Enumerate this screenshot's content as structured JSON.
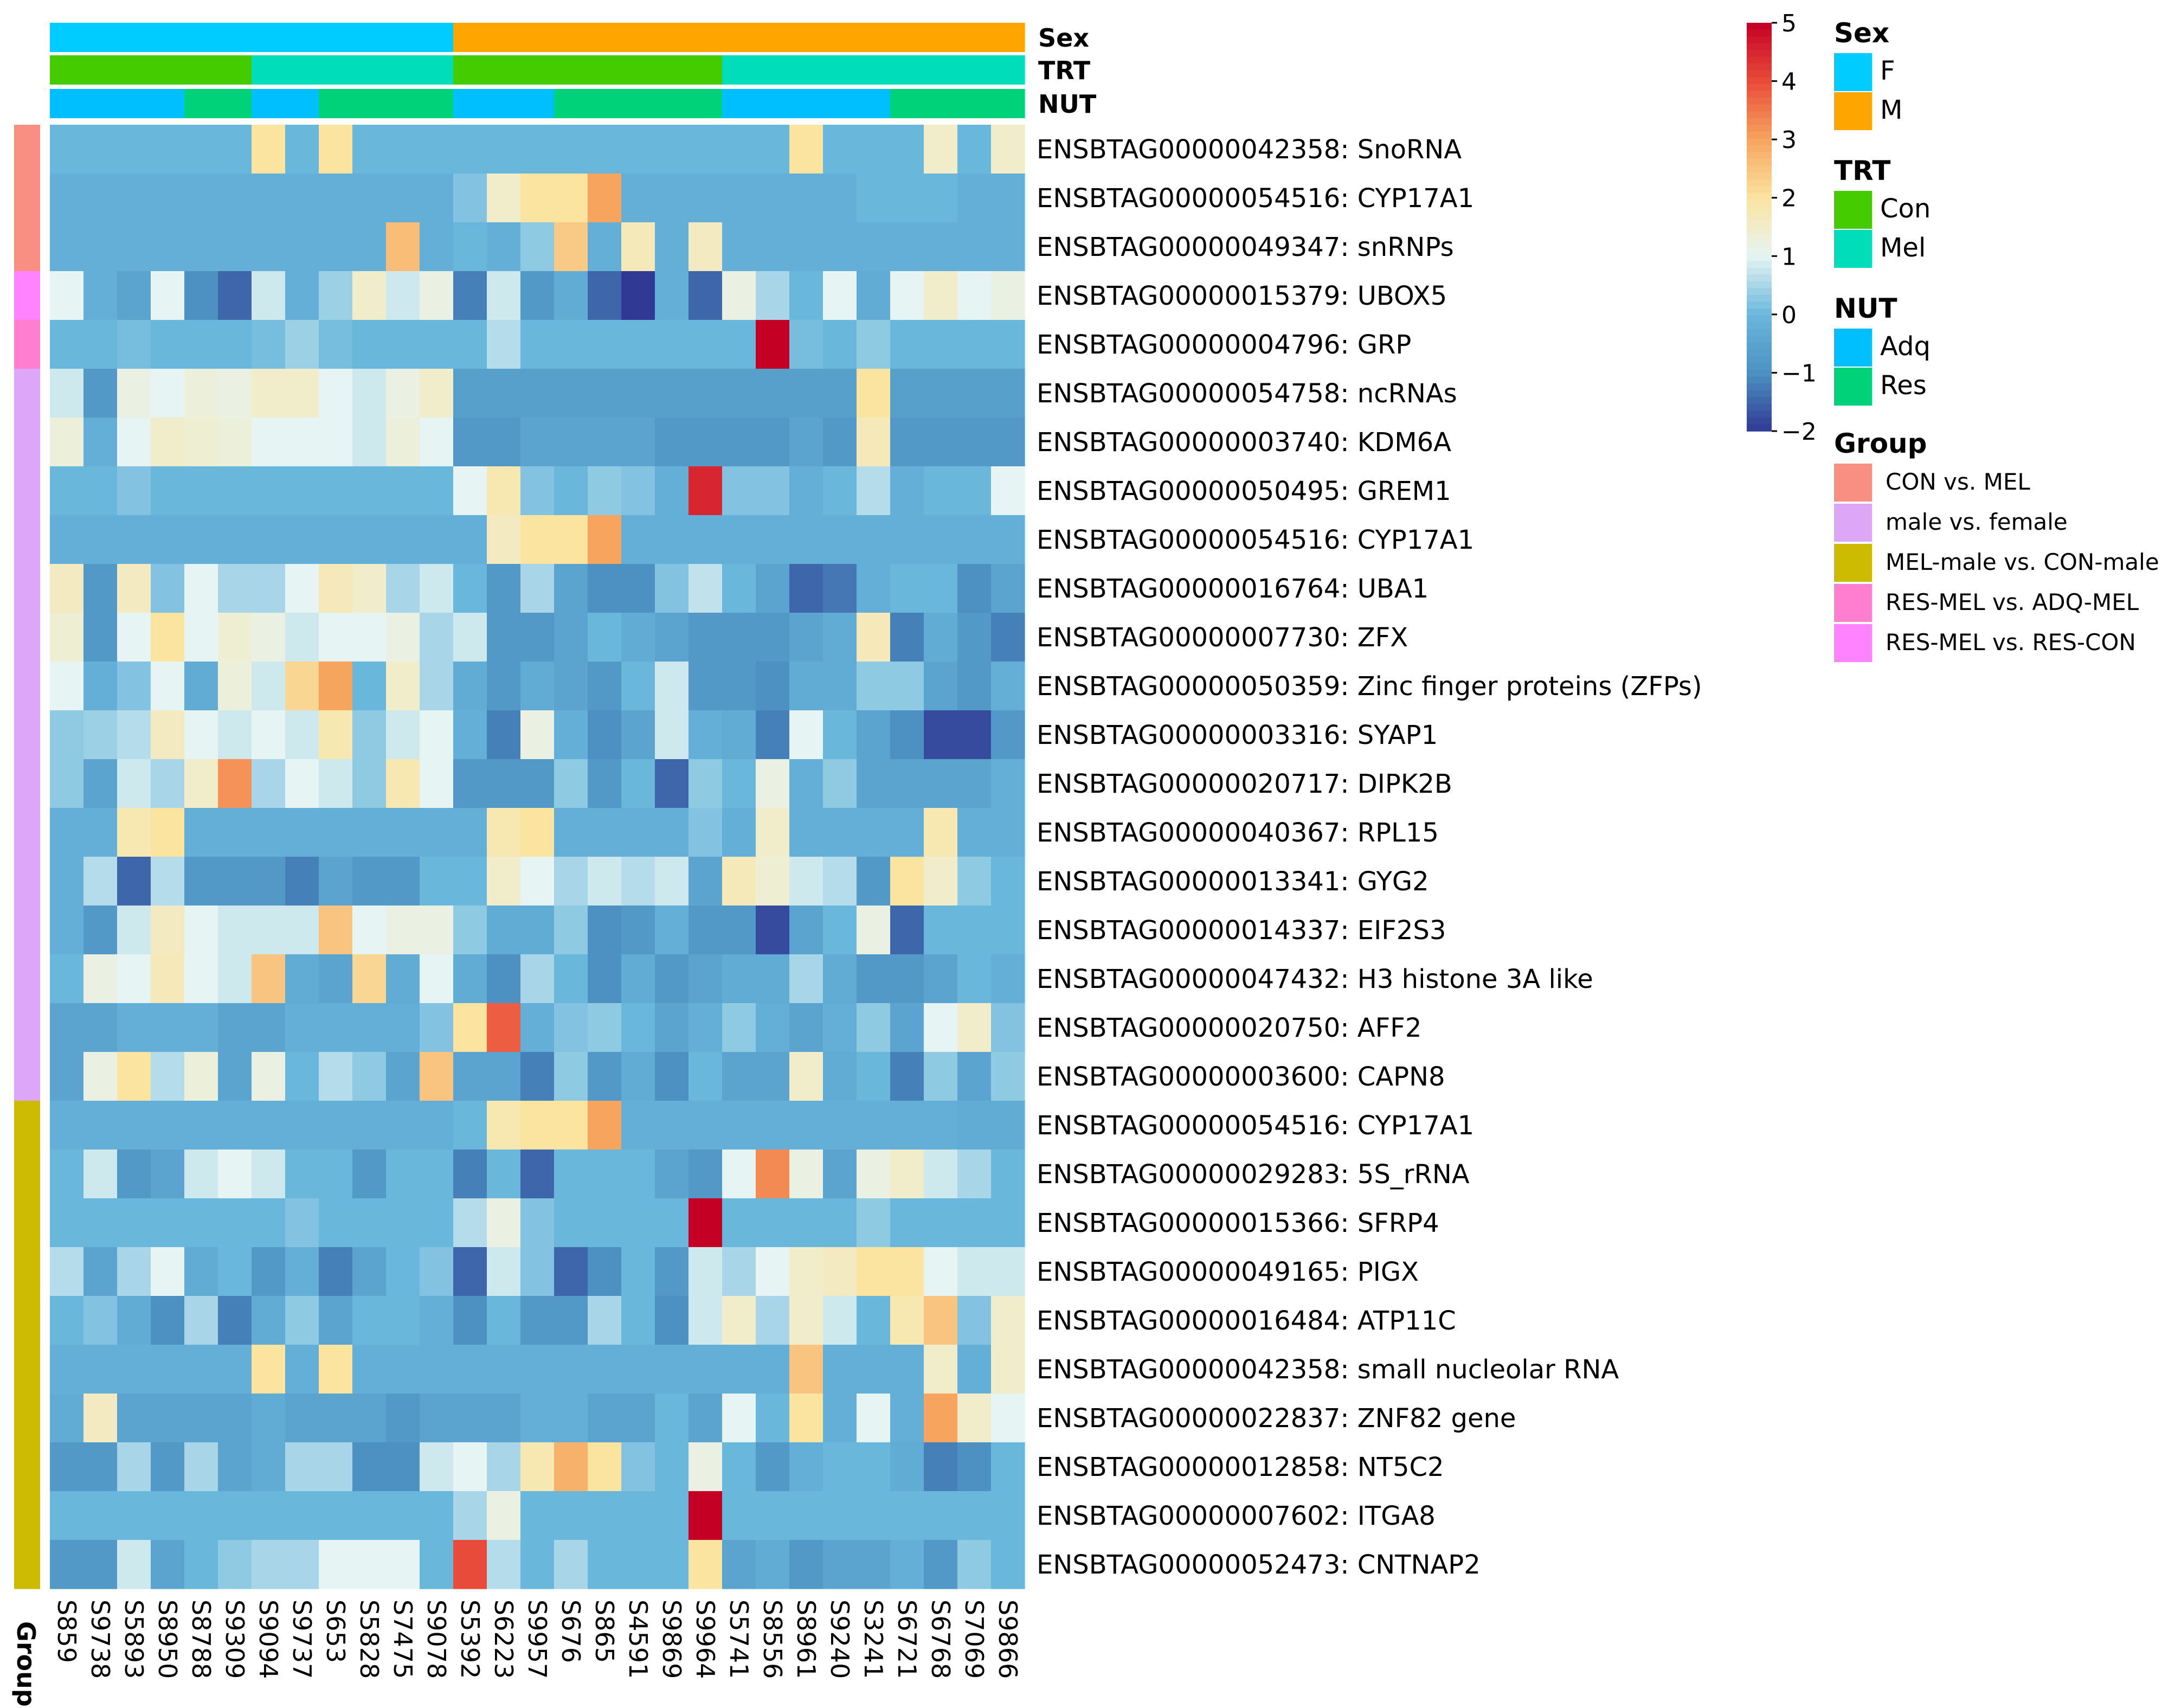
{
  "chart_data": {
    "type": "heatmap",
    "samples": [
      "S859",
      "S9738",
      "S5893",
      "S8950",
      "S8788",
      "S9309",
      "S9094",
      "S9737",
      "S653",
      "S5828",
      "S7475",
      "S9078",
      "S5392",
      "S6223",
      "S9957",
      "S676",
      "S865",
      "S4591",
      "S9869",
      "S9964",
      "S5741",
      "S8556",
      "S8961",
      "S9240",
      "S3241",
      "S6721",
      "S6768",
      "S7069",
      "S9866"
    ],
    "rows": [
      {
        "label": "ENSBTAG00000042358: SnoRNA",
        "group": "CON vs. MEL"
      },
      {
        "label": "ENSBTAG00000054516: CYP17A1",
        "group": "CON vs. MEL"
      },
      {
        "label": "ENSBTAG00000049347: snRNPs",
        "group": "CON vs. MEL"
      },
      {
        "label": "ENSBTAG00000015379: UBOX5",
        "group": "RES-MEL vs. RES-CON"
      },
      {
        "label": "ENSBTAG00000004796: GRP",
        "group": "RES-MEL vs. ADQ-MEL"
      },
      {
        "label": "ENSBTAG00000054758: ncRNAs",
        "group": "male vs. female"
      },
      {
        "label": "ENSBTAG00000003740: KDM6A",
        "group": "male vs. female"
      },
      {
        "label": "ENSBTAG00000050495: GREM1",
        "group": "male vs. female"
      },
      {
        "label": "ENSBTAG00000054516: CYP17A1",
        "group": "male vs. female"
      },
      {
        "label": "ENSBTAG00000016764: UBA1",
        "group": "male vs. female"
      },
      {
        "label": "ENSBTAG00000007730: ZFX",
        "group": "male vs. female"
      },
      {
        "label": "ENSBTAG00000050359: Zinc finger proteins (ZFPs)",
        "group": "male vs. female"
      },
      {
        "label": "ENSBTAG00000003316: SYAP1",
        "group": "male vs. female"
      },
      {
        "label": "ENSBTAG00000020717: DIPK2B",
        "group": "male vs. female"
      },
      {
        "label": "ENSBTAG00000040367: RPL15",
        "group": "male vs. female"
      },
      {
        "label": "ENSBTAG00000013341: GYG2",
        "group": "male vs. female"
      },
      {
        "label": "ENSBTAG00000014337: EIF2S3",
        "group": "male vs. female"
      },
      {
        "label": "ENSBTAG00000047432:  H3 histone 3A like",
        "group": "male vs. female"
      },
      {
        "label": "ENSBTAG00000020750: AFF2",
        "group": "male vs. female"
      },
      {
        "label": "ENSBTAG00000003600: CAPN8",
        "group": "male vs. female"
      },
      {
        "label": "ENSBTAG00000054516: CYP17A1",
        "group": "MEL-male vs. CON-male"
      },
      {
        "label": "ENSBTAG00000029283: 5S_rRNA",
        "group": "MEL-male vs. CON-male"
      },
      {
        "label": "ENSBTAG00000015366: SFRP4",
        "group": "MEL-male vs. CON-male"
      },
      {
        "label": "ENSBTAG00000049165: PIGX",
        "group": "MEL-male vs. CON-male"
      },
      {
        "label": "ENSBTAG00000016484: ATP11C",
        "group": "MEL-male vs. CON-male"
      },
      {
        "label": "ENSBTAG00000042358: small nucleolar RNA",
        "group": "MEL-male vs. CON-male"
      },
      {
        "label": "ENSBTAG00000022837: ZNF82 gene",
        "group": "MEL-male vs. CON-male"
      },
      {
        "label": "ENSBTAG00000012858: NT5C2",
        "group": "MEL-male vs. CON-male"
      },
      {
        "label": "ENSBTAG00000007602: ITGA8",
        "group": "MEL-male vs. CON-male"
      },
      {
        "label": "ENSBTAG00000052473: CNTNAP2",
        "group": "MEL-male vs. CON-male"
      }
    ],
    "values": [
      [
        0,
        0,
        0,
        0,
        0,
        0,
        2,
        0,
        2,
        0,
        0,
        0,
        0,
        0,
        0,
        0,
        0,
        0,
        0,
        0,
        0,
        0,
        2,
        0,
        0,
        0,
        1.5,
        0,
        1.5
      ],
      [
        -0.2,
        -0.2,
        -0.2,
        -0.2,
        -0.2,
        -0.2,
        -0.2,
        -0.2,
        -0.2,
        -0.2,
        -0.2,
        -0.2,
        0.2,
        1.5,
        2,
        2,
        3,
        -0.2,
        -0.2,
        -0.2,
        -0.2,
        -0.2,
        -0.2,
        -0.2,
        0,
        0,
        0,
        -0.2,
        -0.2
      ],
      [
        -0.2,
        -0.2,
        -0.2,
        -0.2,
        -0.2,
        -0.2,
        -0.2,
        -0.2,
        -0.2,
        -0.2,
        2.6,
        -0.2,
        0,
        -0.2,
        0.3,
        2.4,
        -0.2,
        1.7,
        -0.2,
        1.6,
        -0.2,
        -0.2,
        -0.2,
        -0.2,
        -0.2,
        -0.2,
        -0.2,
        -0.2,
        -0.2
      ],
      [
        1,
        -0.2,
        -0.5,
        1,
        -1,
        -1.5,
        0.8,
        -0.2,
        0.4,
        1.5,
        0.8,
        1.2,
        -1.2,
        0.8,
        -0.8,
        -0.3,
        -1.5,
        -2,
        -0.2,
        -1.5,
        1.2,
        0.5,
        0,
        1,
        -0.3,
        1,
        1.5,
        1,
        1.2
      ],
      [
        0,
        0,
        0.1,
        0,
        0,
        0,
        0.1,
        0.4,
        0.1,
        0,
        0,
        0,
        0,
        0.6,
        0,
        0,
        0,
        0,
        0,
        0,
        0,
        5,
        0.1,
        0,
        0.3,
        0,
        0,
        0,
        0
      ],
      [
        0.8,
        -0.8,
        1.2,
        1,
        1.3,
        1.2,
        1.5,
        1.5,
        1,
        0.8,
        1.2,
        1.5,
        -0.6,
        -0.6,
        -0.6,
        -0.6,
        -0.6,
        -0.6,
        -0.6,
        -0.6,
        -0.6,
        -0.6,
        -0.6,
        -0.6,
        2,
        -0.6,
        -0.6,
        -0.6,
        -0.6
      ],
      [
        1.3,
        -0.2,
        1,
        1.5,
        1.4,
        1.3,
        1,
        1,
        1,
        0.8,
        1.3,
        1,
        -0.8,
        -0.8,
        -0.5,
        -0.5,
        -0.5,
        -0.5,
        -0.8,
        -0.8,
        -0.8,
        -0.8,
        -0.5,
        -0.8,
        1.7,
        -0.8,
        -0.8,
        -0.8,
        -0.8
      ],
      [
        0,
        0,
        0.2,
        0,
        0,
        0,
        0,
        0,
        0,
        0,
        0,
        0,
        1,
        1.8,
        0.2,
        0,
        0.3,
        0.2,
        -0.2,
        4.5,
        0.2,
        0.2,
        -0.2,
        0,
        0.6,
        -0.2,
        0,
        0,
        1
      ],
      [
        -0.2,
        -0.2,
        -0.2,
        -0.2,
        -0.2,
        -0.2,
        -0.2,
        -0.2,
        -0.2,
        -0.2,
        -0.2,
        -0.2,
        -0.2,
        1.6,
        2,
        2,
        3,
        -0.2,
        -0.2,
        -0.2,
        -0.2,
        -0.2,
        -0.2,
        -0.2,
        -0.2,
        -0.2,
        -0.2,
        -0.2,
        -0.2
      ],
      [
        1.6,
        -0.8,
        1.6,
        0.2,
        1,
        0.5,
        0.5,
        1,
        1.7,
        1.5,
        0.5,
        0.8,
        0,
        -0.8,
        0.5,
        -0.5,
        -1,
        -1,
        0.2,
        0.7,
        0,
        -0.5,
        -1.5,
        -1.3,
        -0.2,
        0,
        0,
        -1,
        -0.5
      ],
      [
        1.4,
        -0.8,
        1,
        2,
        1,
        1.4,
        1.2,
        0.8,
        1,
        1,
        1.2,
        0.5,
        0.8,
        -0.8,
        -0.8,
        -0.5,
        0,
        -0.3,
        -0.5,
        -0.8,
        -0.8,
        -0.8,
        -0.5,
        -0.3,
        1.7,
        -1.2,
        -0.3,
        -0.8,
        -1.2
      ],
      [
        1,
        -0.2,
        0.2,
        1,
        -0.3,
        1.3,
        0.8,
        2.2,
        3,
        0,
        1.5,
        0.5,
        -0.3,
        -0.8,
        -0.3,
        -0.5,
        -0.8,
        0,
        0.8,
        -0.8,
        -0.8,
        -1,
        -0.3,
        -0.3,
        0.3,
        0.3,
        -0.5,
        -0.8,
        -0.2
      ],
      [
        0.3,
        0.4,
        0.6,
        1.6,
        1,
        0.8,
        1,
        0.8,
        1.8,
        0.3,
        0.8,
        1,
        -0.2,
        -1.2,
        1.2,
        -0.2,
        -1,
        -0.5,
        0.8,
        -0.2,
        -0.3,
        -1.2,
        1,
        0,
        -0.5,
        -1,
        -1.8,
        -1.8,
        -0.8
      ],
      [
        0.3,
        -0.5,
        0.8,
        0.5,
        1.5,
        3.2,
        0.5,
        1,
        0.8,
        0.3,
        1.8,
        1,
        -0.8,
        -0.8,
        -0.8,
        0.3,
        -0.8,
        0,
        -1.5,
        0.3,
        0,
        1.2,
        -0.2,
        0.3,
        -0.5,
        -0.5,
        -0.5,
        -0.5,
        -0.2
      ],
      [
        -0.2,
        -0.2,
        1.8,
        2,
        -0.2,
        -0.2,
        -0.2,
        -0.2,
        -0.2,
        -0.2,
        -0.2,
        -0.2,
        -0.2,
        1.8,
        2,
        -0.2,
        -0.2,
        -0.2,
        -0.2,
        0.2,
        -0.2,
        1.5,
        -0.2,
        -0.2,
        -0.2,
        -0.2,
        1.8,
        -0.2,
        -0.2
      ],
      [
        -0.2,
        0.6,
        -1.5,
        0.6,
        -0.8,
        -0.8,
        -0.8,
        -1.2,
        -0.5,
        -0.8,
        -0.8,
        0,
        0,
        1.5,
        1,
        0.5,
        0.8,
        0.6,
        0.8,
        -0.5,
        1.7,
        1.4,
        0.8,
        0.6,
        -0.8,
        2,
        1.5,
        0.3,
        0
      ],
      [
        -0.2,
        -0.8,
        0.8,
        1.6,
        1,
        0.8,
        0.8,
        0.8,
        2.5,
        1,
        1.2,
        1.2,
        0.3,
        -0.3,
        -0.3,
        0.3,
        -1,
        -0.8,
        -0.2,
        -0.8,
        -0.8,
        -1.8,
        -0.5,
        0,
        1.2,
        -1.5,
        0,
        0,
        0
      ],
      [
        0,
        1.2,
        1,
        1.7,
        1,
        0.8,
        2.5,
        -0.3,
        -0.5,
        2.2,
        -0.3,
        1,
        -0.3,
        -1,
        0.5,
        0,
        -1,
        -0.3,
        -0.8,
        -0.5,
        -0.3,
        -0.3,
        0.5,
        -0.3,
        -0.8,
        -0.8,
        -0.5,
        0,
        -0.2
      ],
      [
        -0.5,
        -0.5,
        -0.2,
        -0.2,
        -0.2,
        -0.5,
        -0.5,
        -0.2,
        -0.2,
        -0.2,
        -0.2,
        0.2,
        2,
        3.8,
        -0.2,
        0.2,
        0.3,
        0,
        -0.5,
        -0.2,
        0.3,
        -0.2,
        -0.5,
        -0.2,
        0.3,
        -0.5,
        1,
        1.5,
        0.2
      ],
      [
        -0.5,
        1.2,
        2,
        0.6,
        1.3,
        -0.5,
        1.2,
        0,
        0.6,
        0.3,
        -0.5,
        2.5,
        -0.5,
        -0.5,
        -1.2,
        0.3,
        -0.8,
        -0.3,
        -1,
        0,
        -0.5,
        -0.5,
        1.5,
        -0.3,
        0,
        -1.2,
        0.3,
        -0.5,
        0.3
      ],
      [
        -0.2,
        -0.2,
        -0.2,
        -0.2,
        -0.2,
        -0.2,
        -0.2,
        -0.2,
        -0.2,
        -0.2,
        -0.2,
        -0.2,
        0,
        1.8,
        2,
        2,
        3,
        -0.2,
        -0.2,
        -0.2,
        -0.2,
        -0.2,
        -0.2,
        -0.2,
        -0.2,
        -0.2,
        -0.2,
        -0.3,
        -0.3
      ],
      [
        0,
        0.8,
        -0.8,
        -0.5,
        0.8,
        1,
        0.8,
        0,
        0,
        -0.8,
        0,
        0,
        -1.2,
        0,
        -1.5,
        0,
        0,
        0,
        -0.5,
        -0.8,
        1,
        3.3,
        1.2,
        -0.5,
        1.2,
        1.5,
        0.8,
        0.5,
        0
      ],
      [
        0,
        0,
        0,
        0,
        0,
        0,
        0,
        0.2,
        0,
        0,
        0,
        0,
        0.6,
        1.2,
        0.2,
        0,
        0,
        0,
        0,
        5,
        0,
        0,
        0,
        0,
        0.3,
        0,
        0,
        0,
        0
      ],
      [
        0.6,
        -0.5,
        0.5,
        1,
        -0.3,
        0,
        -0.8,
        -0.2,
        -1.2,
        -0.5,
        0,
        0.2,
        -1.5,
        0.8,
        0.2,
        -1.5,
        -1,
        0,
        -0.8,
        0.8,
        0.5,
        1,
        1.5,
        1.6,
        2,
        2,
        1,
        0.8,
        0.8
      ],
      [
        0,
        0.2,
        -0.3,
        -1,
        0.5,
        -1.2,
        -0.3,
        0.3,
        -0.5,
        0,
        0,
        -0.2,
        -1,
        0,
        -0.8,
        -0.8,
        0.5,
        0,
        -1,
        0.8,
        1.5,
        0.5,
        1.5,
        0.8,
        0,
        1.8,
        2.5,
        0.2,
        1.5
      ],
      [
        -0.2,
        -0.2,
        -0.2,
        -0.2,
        -0.2,
        -0.2,
        2,
        -0.2,
        2,
        -0.2,
        -0.2,
        -0.2,
        -0.2,
        -0.2,
        -0.2,
        -0.2,
        -0.2,
        -0.2,
        -0.2,
        -0.2,
        -0.2,
        -0.2,
        2.5,
        -0.2,
        -0.2,
        -0.2,
        1.5,
        -0.2,
        1.5
      ],
      [
        -0.3,
        1.6,
        -0.5,
        -0.5,
        -0.5,
        -0.5,
        -0.3,
        -0.5,
        -0.5,
        -0.5,
        -0.8,
        -0.5,
        -0.5,
        -0.5,
        -0.2,
        -0.2,
        -0.5,
        -0.5,
        0,
        -0.5,
        1,
        0,
        2,
        -0.2,
        1,
        -0.2,
        3,
        1.5,
        1
      ],
      [
        -0.8,
        -0.8,
        0.5,
        -0.8,
        0.5,
        -0.5,
        -0.3,
        0.5,
        0.5,
        -1,
        -1,
        0.8,
        1,
        0.5,
        1.8,
        2.8,
        2,
        0.2,
        0,
        1.2,
        0,
        -0.8,
        -0.2,
        0,
        0,
        -0.3,
        -1.2,
        -1,
        0
      ],
      [
        0,
        0,
        0,
        0,
        0,
        0,
        0,
        0,
        0,
        0,
        0,
        0,
        0.5,
        1.2,
        0,
        0,
        0,
        0,
        0,
        5,
        0,
        0,
        0,
        0,
        0,
        0,
        0,
        0,
        0
      ],
      [
        -0.8,
        -0.8,
        0.8,
        -0.5,
        0,
        0.3,
        0.5,
        0.5,
        1,
        1,
        1,
        0,
        4,
        0.6,
        0,
        0.5,
        0,
        0,
        0,
        2,
        -0.5,
        -0.3,
        -0.8,
        -0.5,
        -0.5,
        -0.2,
        -0.8,
        0.3,
        0
      ]
    ],
    "annotations": {
      "Sex": {
        "levels": [
          "F",
          "M"
        ],
        "colors": {
          "F": "#00ccff",
          "M": "#ffa500"
        },
        "values": [
          "F",
          "F",
          "F",
          "F",
          "F",
          "F",
          "F",
          "F",
          "F",
          "F",
          "F",
          "F",
          "M",
          "M",
          "M",
          "M",
          "M",
          "M",
          "M",
          "M",
          "M",
          "M",
          "M",
          "M",
          "M",
          "M",
          "M",
          "M",
          "M"
        ]
      },
      "TRT": {
        "levels": [
          "Con",
          "Mel"
        ],
        "colors": {
          "Con": "#44cc00",
          "Mel": "#00ddbb"
        },
        "values": [
          "Con",
          "Con",
          "Con",
          "Con",
          "Con",
          "Con",
          "Mel",
          "Mel",
          "Mel",
          "Mel",
          "Mel",
          "Mel",
          "Con",
          "Con",
          "Con",
          "Con",
          "Con",
          "Con",
          "Con",
          "Con",
          "Mel",
          "Mel",
          "Mel",
          "Mel",
          "Mel",
          "Mel",
          "Mel",
          "Mel",
          "Mel"
        ]
      },
      "NUT": {
        "levels": [
          "Adq",
          "Res"
        ],
        "colors": {
          "Adq": "#00bfff",
          "Res": "#00d27a"
        },
        "values": [
          "Adq",
          "Adq",
          "Adq",
          "Adq",
          "Res",
          "Res",
          "Adq",
          "Adq",
          "Res",
          "Res",
          "Res",
          "Res",
          "Adq",
          "Adq",
          "Adq",
          "Res",
          "Res",
          "Res",
          "Res",
          "Res",
          "Adq",
          "Adq",
          "Adq",
          "Adq",
          "Adq",
          "Res",
          "Res",
          "Res",
          "Res"
        ]
      }
    },
    "group_title": "Group",
    "group_axis_label": "Group",
    "group_levels": [
      "CON vs. MEL",
      "male vs. female",
      "MEL-male vs. CON-male",
      "RES-MEL vs. ADQ-MEL",
      "RES-MEL vs. RES-CON"
    ],
    "group_colors": {
      "CON vs. MEL": "#f98e82",
      "male vs. female": "#dda6f7",
      "MEL-male vs. CON-male": "#ccbb00",
      "RES-MEL vs. ADQ-MEL": "#ff7ed0",
      "RES-MEL vs. RES-CON": "#ff82ff"
    },
    "color_scale": {
      "min": -2,
      "max": 5,
      "ticks": [
        5,
        4,
        3,
        2,
        1,
        0,
        -1,
        -2
      ],
      "stops": [
        [
          -2,
          "#303a94"
        ],
        [
          -1,
          "#4c91c2"
        ],
        [
          0,
          "#6ab7dc"
        ],
        [
          1,
          "#e6f5f3"
        ],
        [
          2,
          "#fbe3a0"
        ],
        [
          3,
          "#f7a45e"
        ],
        [
          4,
          "#e94b3a"
        ],
        [
          5,
          "#c40025"
        ]
      ]
    }
  }
}
